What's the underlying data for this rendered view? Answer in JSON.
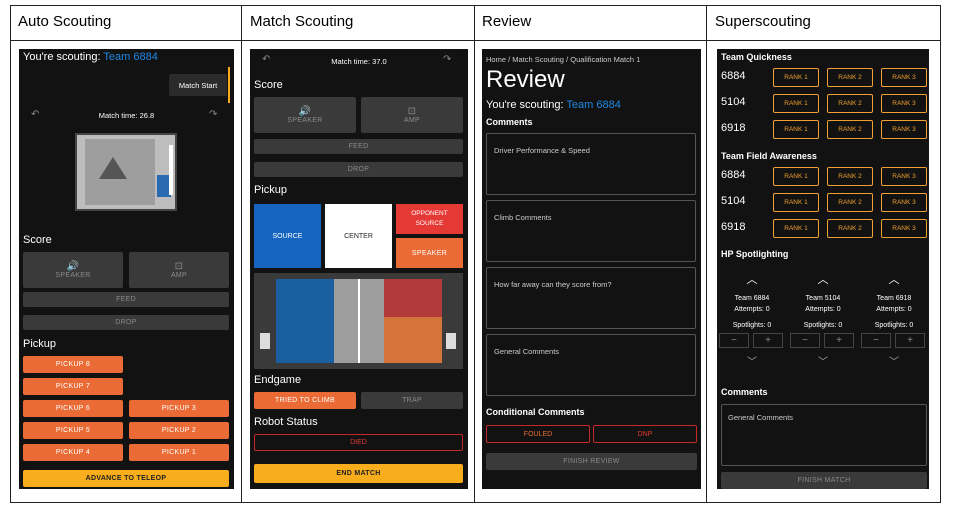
{
  "headers": [
    "Auto Scouting",
    "Match Scouting",
    "Review",
    "Superscouting"
  ],
  "auto": {
    "scouting_label": "You're scouting: ",
    "team": "Team 6884",
    "match_start": "Match Start",
    "match_time": "Match time: 26.8",
    "score": "Score",
    "speaker": "SPEAKER",
    "amp": "AMP",
    "feed": "FEED",
    "drop": "DROP",
    "pickup": "Pickup",
    "pickups_left": [
      "PICKUP 8",
      "PICKUP 7",
      "PICKUP 6",
      "PICKUP 5",
      "PICKUP 4"
    ],
    "pickups_right": [
      "PICKUP 3",
      "PICKUP 2",
      "PICKUP 1"
    ],
    "advance": "ADVANCE TO TELEOP"
  },
  "match": {
    "match_time": "Match time: 37.0",
    "score": "Score",
    "speaker": "SPEAKER",
    "amp": "AMP",
    "feed": "FEED",
    "drop": "DROP",
    "pickup": "Pickup",
    "source": "SOURCE",
    "center": "CENTER",
    "opponent_source": "OPPONENT SOURCE",
    "speaker_btn": "SPEAKER",
    "endgame": "Endgame",
    "tried_climb": "TRIED TO CLIMB",
    "trap": "TRAP",
    "robot_status": "Robot Status",
    "died": "DIED",
    "end_match": "END MATCH"
  },
  "review": {
    "crumb1": "Home",
    "crumb2": "Match Scouting",
    "crumb3": "Qualification Match 1",
    "title": "Review",
    "scouting_label": "You're scouting: ",
    "team": "Team 6884",
    "comments": "Comments",
    "fields": [
      "Driver Performance & Speed",
      "Climb Comments",
      "How far away can they score from?",
      "General Comments"
    ],
    "conditional": "Conditional Comments",
    "fouled": "FOULED",
    "dnp": "DNP",
    "finish": "FINISH REVIEW"
  },
  "super": {
    "quickness": "Team Quickness",
    "awareness": "Team Field Awareness",
    "teams": [
      "6884",
      "5104",
      "6918"
    ],
    "rank_labels": [
      "RANK 1",
      "RANK 2",
      "RANK 3"
    ],
    "hp": "HP Spotlighting",
    "hp_teams": [
      {
        "team": "Team 6884",
        "attempts": "Attempts: 0",
        "spotlights": "Spotlights: 0"
      },
      {
        "team": "Team 5104",
        "attempts": "Attempts: 0",
        "spotlights": "Spotlights: 0"
      },
      {
        "team": "Team 6918",
        "attempts": "Attempts: 0",
        "spotlights": "Spotlights: 0"
      }
    ],
    "minus": "−",
    "plus": "+",
    "comments": "Comments",
    "general": "General Comments",
    "finish": "FINISH MATCH"
  },
  "colors": {
    "accent_blue": "#1e88e5",
    "orange": "#ea6b35",
    "yellow": "#f8ad1c",
    "red": "#e53935"
  }
}
